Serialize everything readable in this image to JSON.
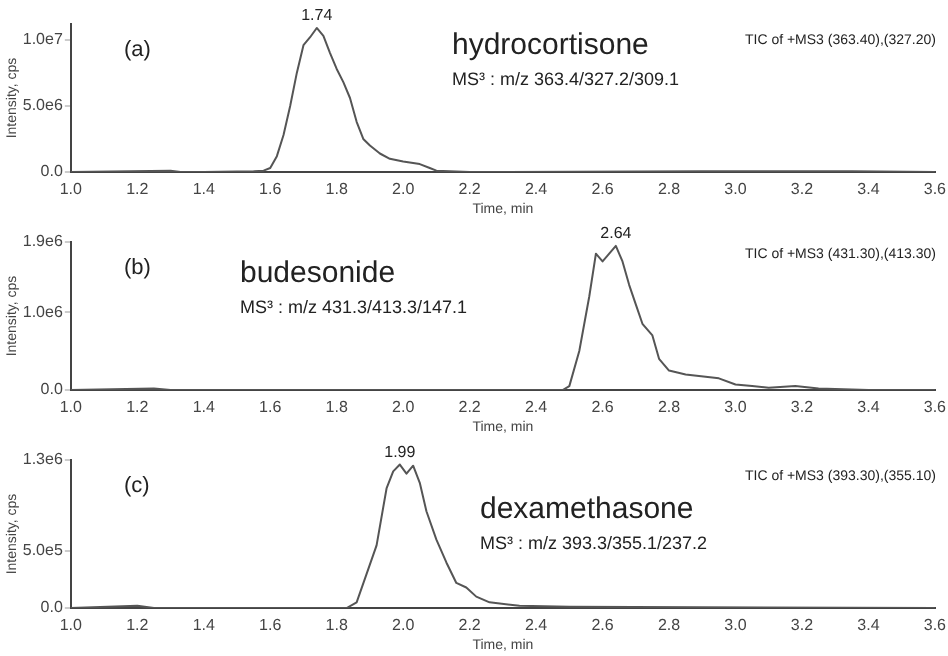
{
  "chart_data": [
    {
      "type": "line",
      "xlabel": "Time, min",
      "ylabel": "Intensity, cps",
      "xlim": [
        1.0,
        3.6
      ],
      "xticks": [
        {
          "value": 1,
          "label": "1.0"
        },
        1.2,
        1.4,
        1.6,
        1.8,
        {
          "value": 2,
          "label": "2.0"
        },
        2.2,
        2.4,
        2.6,
        2.8,
        {
          "value": 3,
          "label": "3.0"
        },
        3.2,
        3.4,
        3.6
      ],
      "ylim": [
        0,
        11200000
      ],
      "yticks": [
        {
          "value": 0,
          "label": "0.0"
        },
        {
          "value": 5000000,
          "label": "5.0e6"
        },
        {
          "value": 10000000,
          "label": "1.0e7"
        }
      ],
      "grid": false,
      "marker": "none",
      "line_style": "solid",
      "series": [
        {
          "color": "#555555",
          "x": [
            1.0,
            1.3,
            1.33,
            1.4,
            1.55,
            1.58,
            1.6,
            1.62,
            1.64,
            1.66,
            1.68,
            1.7,
            1.72,
            1.74,
            1.76,
            1.78,
            1.8,
            1.82,
            1.84,
            1.86,
            1.88,
            1.9,
            1.93,
            1.96,
            2.0,
            2.05,
            2.08,
            2.1,
            2.2,
            2.9,
            3.35,
            3.6
          ],
          "values": [
            0,
            100000,
            0,
            0,
            50000,
            100000,
            300000,
            1200000,
            2800000,
            5000000,
            7500000,
            9600000,
            10200000,
            10900000,
            10300000,
            9000000,
            7800000,
            6800000,
            5600000,
            3800000,
            2500000,
            2000000,
            1400000,
            1000000,
            800000,
            600000,
            300000,
            100000,
            0,
            50000,
            50000,
            0
          ]
        }
      ],
      "annotations": [
        "(a)",
        "hydrocortisone",
        "MS³ : m/z 363.4/327.2/309.1",
        "TIC of +MS3 (363.40),(327.20)",
        {
          "text": "1.74",
          "x": 1.74,
          "y": 10900000
        }
      ]
    },
    {
      "type": "line",
      "xlabel": "Time, min",
      "ylabel": "Intensity, cps",
      "xlim": [
        1.0,
        3.6
      ],
      "xticks": [
        {
          "value": 1,
          "label": "1.0"
        },
        1.2,
        1.4,
        1.6,
        1.8,
        {
          "value": 2,
          "label": "2.0"
        },
        2.2,
        2.4,
        2.6,
        2.8,
        {
          "value": 3,
          "label": "3.0"
        },
        3.2,
        3.4,
        3.6
      ],
      "ylim": [
        0,
        1900000
      ],
      "yticks": [
        {
          "value": 0,
          "label": "0.0"
        },
        {
          "value": 1000000,
          "label": "1.0e6"
        },
        {
          "value": 1900000,
          "label": "1.9e6"
        }
      ],
      "grid": false,
      "marker": "none",
      "line_style": "solid",
      "series": [
        {
          "color": "#555555",
          "x": [
            1.0,
            1.25,
            1.3,
            2.48,
            2.5,
            2.53,
            2.56,
            2.58,
            2.6,
            2.62,
            2.64,
            2.66,
            2.68,
            2.7,
            2.72,
            2.75,
            2.77,
            2.8,
            2.85,
            2.95,
            3.0,
            3.05,
            3.1,
            3.18,
            3.25,
            3.4,
            3.6
          ],
          "values": [
            0,
            20000,
            0,
            0,
            50000,
            500000,
            1200000,
            1750000,
            1650000,
            1750000,
            1850000,
            1650000,
            1350000,
            1100000,
            850000,
            700000,
            400000,
            250000,
            200000,
            150000,
            70000,
            50000,
            30000,
            50000,
            20000,
            0,
            0
          ]
        }
      ],
      "annotations": [
        "(b)",
        "budesonide",
        "MS³ : m/z 431.3/413.3/147.1",
        "TIC of +MS3 (431.30),(413.30)",
        {
          "text": "2.64",
          "x": 2.64,
          "y": 1850000
        }
      ]
    },
    {
      "type": "line",
      "xlabel": "Time, min",
      "ylabel": "Intensity, cps",
      "xlim": [
        1.0,
        3.6
      ],
      "xticks": [
        {
          "value": 1,
          "label": "1.0"
        },
        1.2,
        1.4,
        1.6,
        1.8,
        {
          "value": 2,
          "label": "2.0"
        },
        2.2,
        2.4,
        2.6,
        2.8,
        {
          "value": 3,
          "label": "3.0"
        },
        3.2,
        3.4,
        3.6
      ],
      "ylim": [
        0,
        1300000
      ],
      "yticks": [
        {
          "value": 0,
          "label": "0.0"
        },
        {
          "value": 500000,
          "label": "5.0e5"
        },
        {
          "value": 1300000,
          "label": "1.3e6"
        }
      ],
      "grid": false,
      "marker": "none",
      "line_style": "solid",
      "series": [
        {
          "color": "#555555",
          "x": [
            1.0,
            1.2,
            1.25,
            1.83,
            1.86,
            1.89,
            1.92,
            1.95,
            1.97,
            1.99,
            2.01,
            2.03,
            2.05,
            2.07,
            2.1,
            2.13,
            2.16,
            2.19,
            2.22,
            2.26,
            2.35,
            2.5,
            3.6
          ],
          "values": [
            0,
            20000,
            0,
            0,
            50000,
            300000,
            550000,
            1050000,
            1200000,
            1260000,
            1180000,
            1250000,
            1100000,
            850000,
            600000,
            400000,
            220000,
            180000,
            100000,
            50000,
            20000,
            10000,
            0
          ]
        }
      ],
      "annotations": [
        "(c)",
        "dexamethasone",
        "MS³ : m/z 393.3/355.1/237.2",
        "TIC of +MS3 (393.30),(355.10)",
        {
          "text": "1.99",
          "x": 1.99,
          "y": 1260000
        }
      ]
    }
  ]
}
